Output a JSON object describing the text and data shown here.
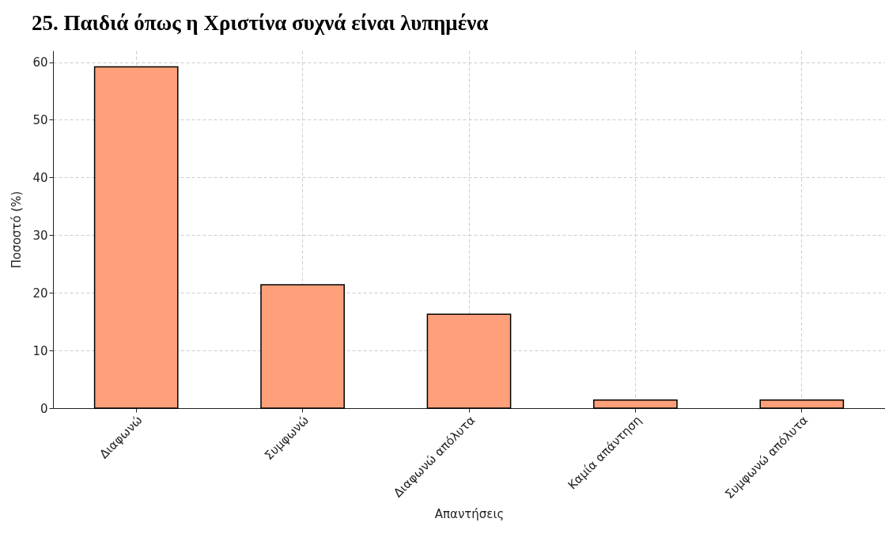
{
  "chart_data": {
    "type": "bar",
    "title": "25. Παιδιά όπως η Χριστίνα συχνά είναι λυπημένα",
    "xlabel": "Απαντήσεις",
    "ylabel": "Ποσοστό (%)",
    "categories": [
      "Διαφωνώ",
      "Συμφωνώ",
      "Διαφωνώ απόλυτα",
      "Καμία απάντηση",
      "Συμφωνώ απόλυτα"
    ],
    "values": [
      59.2,
      21.4,
      16.3,
      1.4,
      1.4
    ],
    "color": "#ffa07a",
    "ylim": [
      0,
      62
    ],
    "yticks": [
      0,
      10,
      20,
      30,
      40,
      50,
      60
    ],
    "grid": true
  }
}
